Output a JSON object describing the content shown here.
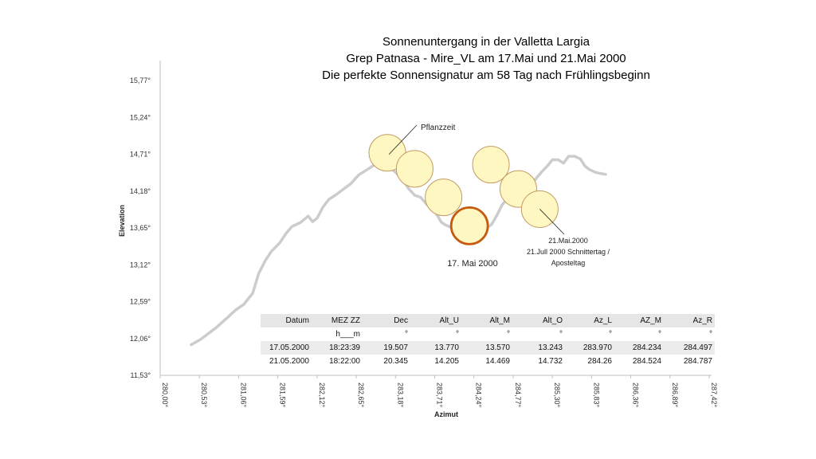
{
  "titles": [
    "Sonnenuntergang in der Valletta Largia",
    "Grep Patnasa - Mire_VL  am 17.Mai und 21.Mai 2000",
    "Die perfekte Sonnensignatur am 58 Tag nach Frühlingsbeginn"
  ],
  "chart_data": {
    "type": "line",
    "xlabel": "Azimut",
    "ylabel": "Elevation",
    "xlim": [
      280.0,
      287.42
    ],
    "ylim": [
      11.53,
      15.77
    ],
    "x_ticks": [
      "280,00°",
      "280,53°",
      "281,06°",
      "281,59°",
      "282,12°",
      "282,65°",
      "283,18°",
      "283,71°",
      "284,24°",
      "284,77°",
      "285,30°",
      "285,83°",
      "286,36°",
      "286,89°",
      "287,42°"
    ],
    "y_ticks": [
      "15,77°",
      "15,24°",
      "14,71°",
      "14,18°",
      "13,65°",
      "13,12°",
      "12,59°",
      "12,06°",
      "11,53°"
    ],
    "grid": false,
    "horizon": {
      "x": [
        280.42,
        280.55,
        280.75,
        280.92,
        281.02,
        281.13,
        281.25,
        281.33,
        281.42,
        281.5,
        281.62,
        281.7,
        281.78,
        281.9,
        282.0,
        282.06,
        282.12,
        282.2,
        282.28,
        282.38,
        282.48,
        282.58,
        282.68,
        282.8,
        282.9,
        283.0,
        283.1,
        283.15,
        283.2,
        283.3,
        283.36,
        283.44,
        283.52,
        283.6,
        283.7,
        283.8,
        283.86,
        283.95,
        284.05,
        284.15,
        284.25,
        284.32,
        284.4,
        284.48,
        284.55,
        284.62,
        284.7,
        284.8,
        284.9,
        285.0,
        285.08,
        285.16,
        285.24,
        285.3,
        285.38,
        285.45,
        285.52,
        285.6,
        285.68,
        285.74,
        285.8,
        285.88,
        285.96,
        286.02
      ],
      "y": [
        11.97,
        12.05,
        12.21,
        12.37,
        12.47,
        12.55,
        12.71,
        12.99,
        13.18,
        13.31,
        13.44,
        13.57,
        13.67,
        13.73,
        13.82,
        13.74,
        13.79,
        13.95,
        14.06,
        14.13,
        14.21,
        14.29,
        14.41,
        14.49,
        14.56,
        14.57,
        14.53,
        14.48,
        14.43,
        14.31,
        14.21,
        14.12,
        14.09,
        13.99,
        13.91,
        13.73,
        13.69,
        13.65,
        13.58,
        13.56,
        13.58,
        13.6,
        13.64,
        13.7,
        13.83,
        13.98,
        14.08,
        14.13,
        14.2,
        14.25,
        14.36,
        14.46,
        14.55,
        14.63,
        14.63,
        14.58,
        14.68,
        14.68,
        14.64,
        14.54,
        14.49,
        14.45,
        14.43,
        14.42
      ]
    },
    "suns": [
      {
        "x": 283.07,
        "y": 14.73,
        "type": "pflanzzeit"
      },
      {
        "x": 283.44,
        "y": 14.5,
        "type": "normal"
      },
      {
        "x": 283.83,
        "y": 14.09,
        "type": "normal"
      },
      {
        "x": 284.18,
        "y": 13.68,
        "type": "highlight"
      },
      {
        "x": 284.47,
        "y": 14.56,
        "type": "normal"
      },
      {
        "x": 284.84,
        "y": 14.21,
        "type": "normal"
      },
      {
        "x": 285.13,
        "y": 13.92,
        "type": "normal"
      }
    ],
    "annotations": {
      "pflanzzeit": "Pflanzzeit",
      "may21_line1": "21.Mai.2000",
      "may21_line2": "21.Jull 2000 Schnittertag /",
      "may21_line3": "Aposteltag",
      "may17": "17. Mai 2000"
    },
    "colors": {
      "horizon": "#cccccc",
      "sun_fill": "#fff7c2",
      "sun_stroke": "#c19a60",
      "highlight_stroke": "#c55a11"
    }
  },
  "table": {
    "headers": [
      "Datum",
      "MEZ ZZ",
      "Dec",
      "Alt_U",
      "Alt_M",
      "Alt_O",
      "Az_L",
      "AZ_M",
      "Az_R"
    ],
    "units": [
      "",
      "h___m",
      "°",
      "°",
      "°",
      "°",
      "°",
      "°",
      "°"
    ],
    "rows": [
      [
        "17.05.2000",
        "18:23:39",
        "19.507",
        "13.770",
        "13.570",
        "13.243",
        "283.970",
        "284.234",
        "284.497"
      ],
      [
        "21.05.2000",
        "18:22:00",
        "20.345",
        "14.205",
        "14.469",
        "14.732",
        "284.26",
        "284.524",
        "284.787"
      ]
    ]
  }
}
